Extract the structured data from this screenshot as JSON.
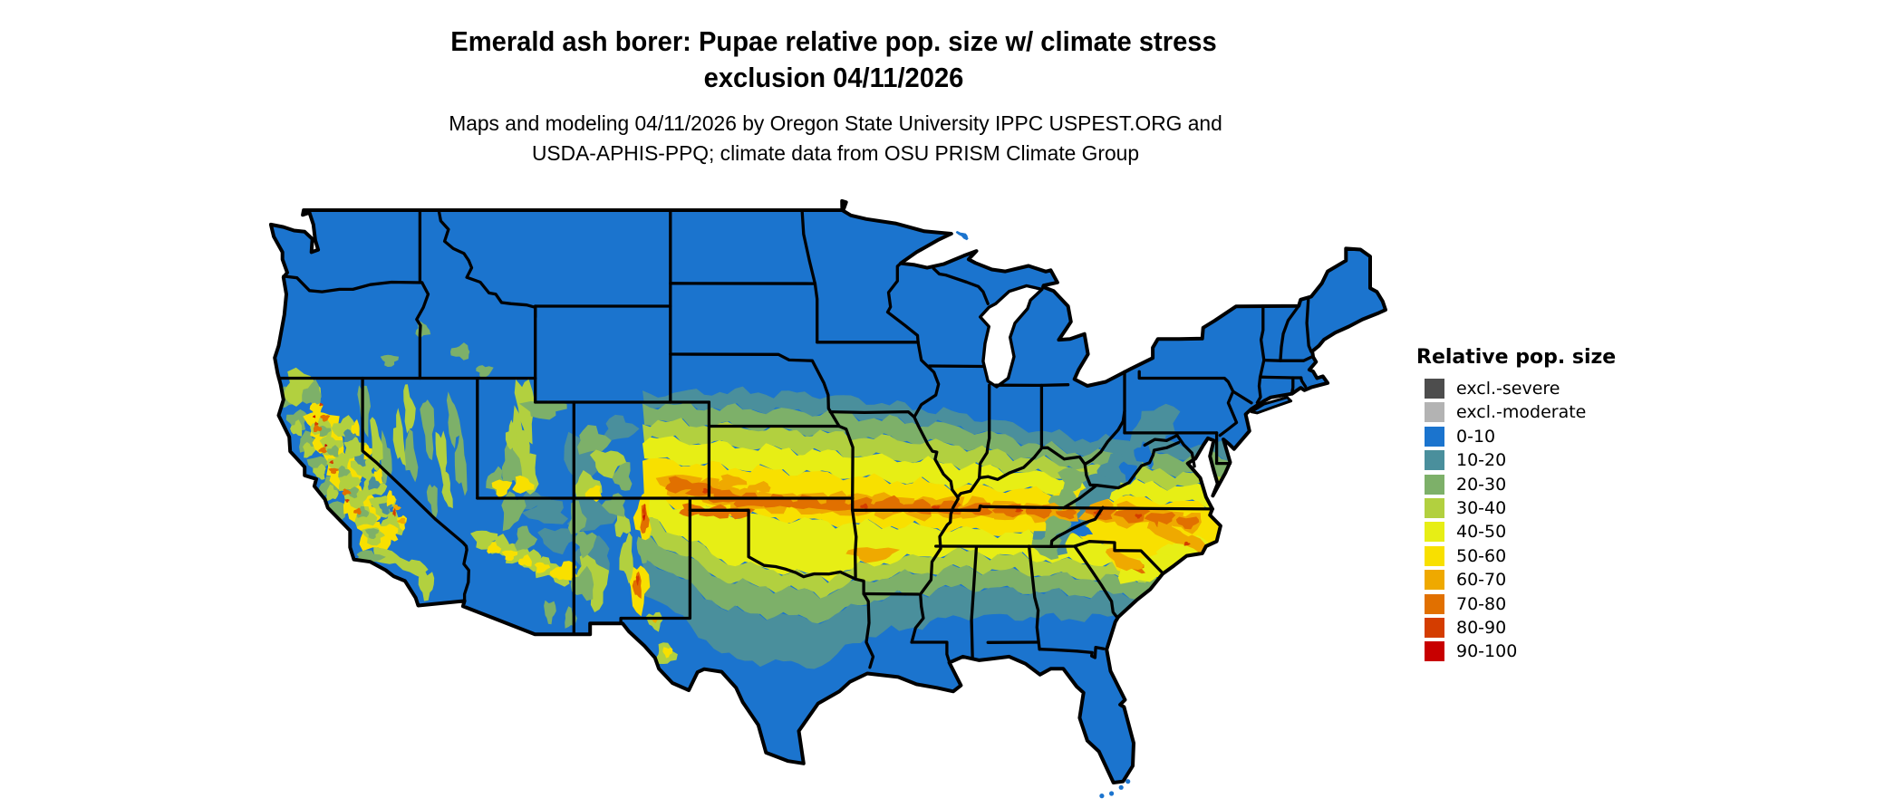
{
  "title": {
    "line1": "Emerald ash borer: Pupae relative pop. size w/ climate stress",
    "line2": "exclusion 04/11/2026"
  },
  "subtitle": {
    "line1": "Maps and modeling 04/11/2026 by Oregon State University IPPC USPEST.ORG and",
    "line2": "USDA-APHIS-PPQ; climate data from OSU PRISM Climate Group"
  },
  "legend": {
    "title": "Relative pop. size",
    "items": [
      {
        "label": "excl.-severe",
        "color": "#4D4D4D"
      },
      {
        "label": "excl.-moderate",
        "color": "#B3B3B3"
      },
      {
        "label": "0-10",
        "color": "#1B74CE"
      },
      {
        "label": "10-20",
        "color": "#4A8F9C"
      },
      {
        "label": "20-30",
        "color": "#7DB069"
      },
      {
        "label": "30-40",
        "color": "#B2D03F"
      },
      {
        "label": "40-50",
        "color": "#E7EE15"
      },
      {
        "label": "50-60",
        "color": "#F8E000"
      },
      {
        "label": "60-70",
        "color": "#EFA900"
      },
      {
        "label": "70-80",
        "color": "#E17000"
      },
      {
        "label": "80-90",
        "color": "#D43D00"
      },
      {
        "label": "90-100",
        "color": "#C80000"
      }
    ]
  },
  "map": {
    "region": "Contiguous United States",
    "border_color": "#000000",
    "water_color": "#FFFFFF"
  }
}
